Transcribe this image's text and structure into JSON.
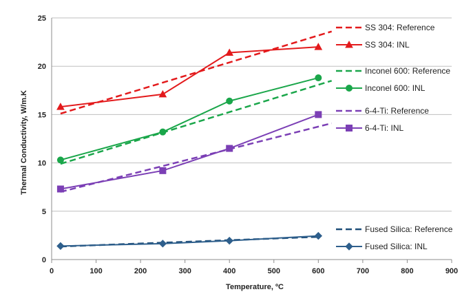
{
  "chart_data": {
    "type": "line",
    "title": "",
    "xlabel": "Temperature, ºC",
    "ylabel": "Thermal Conductivity, W/m.K",
    "xlim": [
      0,
      900
    ],
    "ylim": [
      0,
      25
    ],
    "xticks": [
      0,
      100,
      200,
      300,
      400,
      500,
      600,
      700,
      800,
      900
    ],
    "yticks": [
      0,
      5,
      10,
      15,
      20,
      25
    ],
    "grid": "horizontal",
    "legend_position": "right",
    "series": [
      {
        "name": "SS 304: Reference",
        "color": "#e31a1c",
        "style": "dashed",
        "marker": "none",
        "x": [
          20,
          630
        ],
        "y": [
          15.1,
          23.6
        ]
      },
      {
        "name": "SS 304: INL",
        "color": "#e31a1c",
        "style": "solid",
        "marker": "triangle",
        "x": [
          20,
          250,
          400,
          600
        ],
        "y": [
          15.8,
          17.1,
          21.4,
          22.0
        ]
      },
      {
        "name": "Inconel 600: Reference",
        "color": "#1aa64a",
        "style": "dashed",
        "marker": "none",
        "x": [
          20,
          630
        ],
        "y": [
          9.9,
          18.5
        ]
      },
      {
        "name": "Inconel 600: INL",
        "color": "#1aa64a",
        "style": "solid",
        "marker": "circle",
        "x": [
          20,
          250,
          400,
          600
        ],
        "y": [
          10.3,
          13.2,
          16.4,
          18.8
        ]
      },
      {
        "name": "6-4-Ti: Reference",
        "color": "#7b3fb5",
        "style": "dashed",
        "marker": "none",
        "x": [
          20,
          630
        ],
        "y": [
          7.0,
          14.1
        ]
      },
      {
        "name": "6-4-Ti: INL",
        "color": "#7b3fb5",
        "style": "solid",
        "marker": "square",
        "x": [
          20,
          250,
          400,
          600
        ],
        "y": [
          7.3,
          9.2,
          11.5,
          15.0
        ]
      },
      {
        "name": "Fused Silica: Reference",
        "color": "#1f4e79",
        "style": "dashed",
        "marker": "none",
        "x": [
          20,
          600
        ],
        "y": [
          1.35,
          2.35
        ]
      },
      {
        "name": "Fused Silica: INL",
        "color": "#2e5f8c",
        "style": "solid",
        "marker": "diamond",
        "x": [
          20,
          250,
          400,
          600
        ],
        "y": [
          1.4,
          1.65,
          1.95,
          2.45
        ]
      }
    ]
  }
}
